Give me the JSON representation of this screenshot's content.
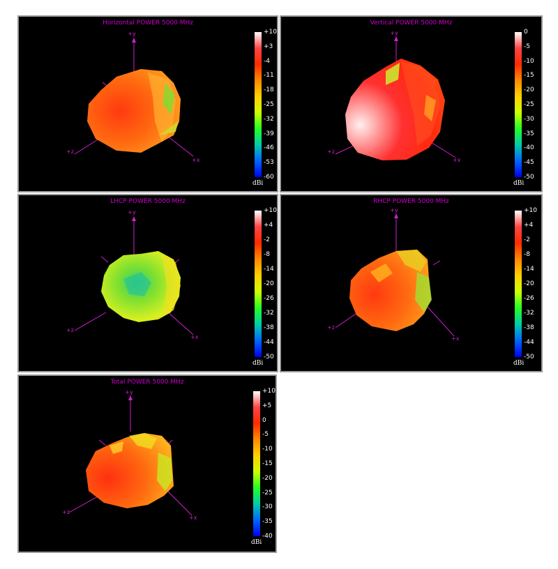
{
  "colorscale": {
    "stops": [
      "#ffffff",
      "#ff4444",
      "#ff2b00",
      "#ff8800",
      "#ffd000",
      "#ccff00",
      "#22ff22",
      "#00ccaa",
      "#0066ff",
      "#0000ee"
    ]
  },
  "axis_labels": {
    "y": "+y",
    "x": "+x",
    "z": "+z"
  },
  "chart_data": [
    {
      "id": "horizontal",
      "type": "3d-radiation-pattern",
      "title": "Horizontal POWER 5000 MHz",
      "unit": "dBi",
      "colorbar_ticks": [
        "+10",
        "+3",
        "-4",
        "-11",
        "-18",
        "-25",
        "-32",
        "-39",
        "-46",
        "-53",
        "-60"
      ],
      "colorbar_range": [
        -60,
        10
      ],
      "dominant_level_dBi": -5
    },
    {
      "id": "vertical",
      "type": "3d-radiation-pattern",
      "title": "Vertical POWER 5000 MHz",
      "unit": "dBi",
      "colorbar_ticks": [
        "0",
        "-5",
        "-10",
        "-15",
        "-20",
        "-25",
        "-30",
        "-35",
        "-40",
        "-45",
        "-50"
      ],
      "colorbar_range": [
        -50,
        0
      ],
      "dominant_level_dBi": -5
    },
    {
      "id": "lhcp",
      "type": "3d-radiation-pattern",
      "title": "LHCP POWER 5000 MHz",
      "unit": "dBi",
      "colorbar_ticks": [
        "+10",
        "+4",
        "-2",
        "-8",
        "-14",
        "-20",
        "-26",
        "-32",
        "-38",
        "-44",
        "-50"
      ],
      "colorbar_range": [
        -50,
        10
      ],
      "dominant_level_dBi": -20
    },
    {
      "id": "rhcp",
      "type": "3d-radiation-pattern",
      "title": "RHCP POWER 5000 MHz",
      "unit": "dBi",
      "colorbar_ticks": [
        "+10",
        "+4",
        "-2",
        "-8",
        "-14",
        "-20",
        "-26",
        "-32",
        "-38",
        "-44",
        "-50"
      ],
      "colorbar_range": [
        -50,
        10
      ],
      "dominant_level_dBi": -5
    },
    {
      "id": "total",
      "type": "3d-radiation-pattern",
      "title": "Total POWER 5000 MHz",
      "unit": "dBi",
      "colorbar_ticks": [
        "+10",
        "+5",
        "0",
        "-5",
        "-10",
        "-15",
        "-20",
        "-25",
        "-30",
        "-35",
        "-40"
      ],
      "colorbar_range": [
        -40,
        10
      ],
      "dominant_level_dBi": -3
    }
  ]
}
